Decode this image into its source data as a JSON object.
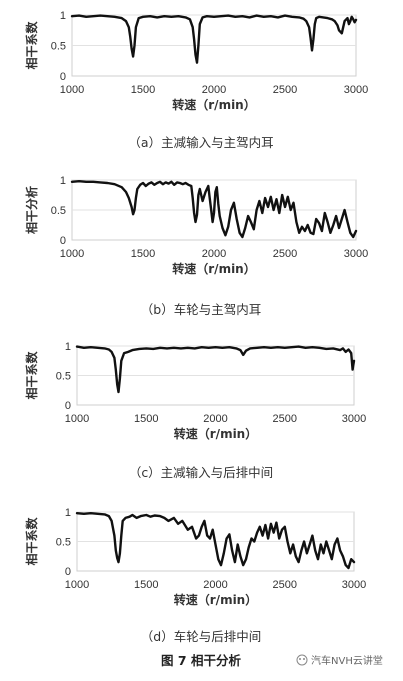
{
  "figure_caption": "图 7  相干分析",
  "watermark": "汽车NVH云讲堂",
  "chart_data": [
    {
      "type": "line",
      "caption": "（a）主减输入与主驾内耳",
      "xlabel": "转速（r/min）",
      "ylabel": "相干系数",
      "xlim": [
        1000,
        3000
      ],
      "ylim": [
        0,
        1
      ],
      "xticks": [
        "1000",
        "1500",
        "2000",
        "2500",
        "3000"
      ],
      "yticks": [
        "0",
        "0.5",
        "1"
      ],
      "grid": "horizontal",
      "series": [
        {
          "x": [
            1000,
            1050,
            1100,
            1150,
            1200,
            1250,
            1300,
            1350,
            1380,
            1400,
            1410,
            1420,
            1430,
            1440,
            1450,
            1470,
            1500,
            1550,
            1600,
            1650,
            1700,
            1750,
            1800,
            1830,
            1850,
            1860,
            1870,
            1880,
            1890,
            1900,
            1920,
            1950,
            2000,
            2050,
            2100,
            2150,
            2200,
            2250,
            2300,
            2350,
            2400,
            2450,
            2500,
            2550,
            2600,
            2630,
            2650,
            2670,
            2680,
            2690,
            2700,
            2710,
            2720,
            2740,
            2770,
            2800,
            2830,
            2850,
            2870,
            2880,
            2900,
            2910,
            2920,
            2940,
            2950,
            2960,
            2970,
            2980,
            2990,
            3000
          ],
          "y": [
            0.98,
            0.99,
            0.97,
            0.98,
            0.99,
            0.98,
            0.97,
            0.95,
            0.9,
            0.8,
            0.65,
            0.45,
            0.32,
            0.5,
            0.8,
            0.95,
            0.97,
            0.98,
            0.96,
            0.98,
            0.97,
            0.98,
            0.96,
            0.93,
            0.8,
            0.6,
            0.35,
            0.22,
            0.5,
            0.85,
            0.96,
            0.98,
            0.97,
            0.98,
            0.99,
            0.97,
            0.98,
            0.96,
            0.99,
            0.97,
            0.98,
            0.96,
            0.99,
            0.97,
            0.96,
            0.94,
            0.9,
            0.8,
            0.62,
            0.42,
            0.6,
            0.85,
            0.95,
            0.97,
            0.96,
            0.95,
            0.93,
            0.9,
            0.83,
            0.75,
            0.7,
            0.8,
            0.9,
            0.95,
            0.85,
            0.9,
            0.97,
            0.93,
            0.88,
            0.92
          ]
        }
      ]
    },
    {
      "type": "line",
      "caption": "（b）车轮与主驾内耳",
      "xlabel": "转速（r/min）",
      "ylabel": "相干分析",
      "xlim": [
        1000,
        3000
      ],
      "ylim": [
        0,
        1
      ],
      "xticks": [
        "1000",
        "1500",
        "2000",
        "2500",
        "3000"
      ],
      "yticks": [
        "0",
        "0.5",
        "1"
      ],
      "grid": "horizontal",
      "series": [
        {
          "x": [
            1000,
            1050,
            1100,
            1150,
            1200,
            1250,
            1300,
            1350,
            1380,
            1400,
            1420,
            1430,
            1440,
            1450,
            1460,
            1480,
            1500,
            1520,
            1540,
            1560,
            1580,
            1600,
            1620,
            1640,
            1660,
            1680,
            1700,
            1720,
            1740,
            1760,
            1780,
            1800,
            1820,
            1840,
            1850,
            1860,
            1870,
            1880,
            1890,
            1900,
            1920,
            1940,
            1960,
            1970,
            1980,
            1990,
            2000,
            2010,
            2020,
            2030,
            2040,
            2060,
            2080,
            2100,
            2120,
            2140,
            2160,
            2180,
            2200,
            2220,
            2240,
            2260,
            2280,
            2300,
            2320,
            2340,
            2360,
            2380,
            2400,
            2420,
            2440,
            2460,
            2480,
            2500,
            2520,
            2540,
            2560,
            2580,
            2600,
            2620,
            2640,
            2660,
            2680,
            2700,
            2720,
            2740,
            2760,
            2780,
            2800,
            2820,
            2840,
            2860,
            2880,
            2900,
            2920,
            2940,
            2960,
            2980,
            3000
          ],
          "y": [
            0.97,
            0.98,
            0.97,
            0.97,
            0.96,
            0.95,
            0.93,
            0.88,
            0.8,
            0.7,
            0.55,
            0.43,
            0.5,
            0.7,
            0.85,
            0.92,
            0.95,
            0.9,
            0.94,
            0.96,
            0.92,
            0.95,
            0.97,
            0.93,
            0.96,
            0.94,
            0.97,
            0.92,
            0.96,
            0.95,
            0.93,
            0.95,
            0.92,
            0.9,
            0.7,
            0.45,
            0.3,
            0.42,
            0.75,
            0.85,
            0.65,
            0.8,
            0.9,
            0.7,
            0.5,
            0.3,
            0.45,
            0.8,
            0.88,
            0.6,
            0.4,
            0.2,
            0.08,
            0.22,
            0.5,
            0.62,
            0.35,
            0.12,
            0.05,
            0.2,
            0.4,
            0.3,
            0.18,
            0.5,
            0.65,
            0.45,
            0.7,
            0.55,
            0.72,
            0.5,
            0.68,
            0.45,
            0.75,
            0.55,
            0.72,
            0.5,
            0.62,
            0.3,
            0.12,
            0.22,
            0.15,
            0.25,
            0.12,
            0.1,
            0.35,
            0.28,
            0.15,
            0.45,
            0.3,
            0.12,
            0.25,
            0.4,
            0.2,
            0.35,
            0.5,
            0.3,
            0.12,
            0.05,
            0.15
          ]
        }
      ]
    },
    {
      "type": "line",
      "caption": "（c）主减输入与后排中间",
      "xlabel": "转速（r/min）",
      "ylabel": "相干系数",
      "xlim": [
        1000,
        3000
      ],
      "ylim": [
        0,
        1
      ],
      "xticks": [
        "1000",
        "1500",
        "2000",
        "2500",
        "3000"
      ],
      "yticks": [
        "0",
        "0.5",
        "1"
      ],
      "grid": "horizontal",
      "series": [
        {
          "x": [
            1000,
            1050,
            1100,
            1150,
            1200,
            1230,
            1250,
            1270,
            1280,
            1290,
            1300,
            1310,
            1320,
            1340,
            1370,
            1400,
            1450,
            1500,
            1550,
            1600,
            1650,
            1700,
            1750,
            1800,
            1850,
            1900,
            1950,
            2000,
            2050,
            2100,
            2150,
            2180,
            2200,
            2220,
            2250,
            2300,
            2350,
            2400,
            2450,
            2500,
            2550,
            2600,
            2650,
            2700,
            2750,
            2800,
            2850,
            2900,
            2920,
            2940,
            2960,
            2980,
            2990,
            3000
          ],
          "y": [
            0.99,
            0.97,
            0.98,
            0.97,
            0.96,
            0.94,
            0.9,
            0.8,
            0.6,
            0.35,
            0.22,
            0.45,
            0.75,
            0.88,
            0.9,
            0.93,
            0.95,
            0.96,
            0.95,
            0.97,
            0.96,
            0.97,
            0.96,
            0.97,
            0.96,
            0.98,
            0.97,
            0.98,
            0.97,
            0.98,
            0.96,
            0.93,
            0.85,
            0.92,
            0.96,
            0.97,
            0.98,
            0.97,
            0.98,
            0.97,
            0.98,
            0.99,
            0.97,
            0.98,
            0.97,
            0.95,
            0.96,
            0.93,
            0.96,
            0.9,
            0.94,
            0.88,
            0.6,
            0.75
          ]
        }
      ]
    },
    {
      "type": "line",
      "caption": "（d）车轮与后排中间",
      "xlabel": "转速（r/min）",
      "ylabel": "相干系数",
      "xlim": [
        1000,
        3000
      ],
      "ylim": [
        0,
        1
      ],
      "xticks": [
        "1000",
        "1500",
        "2000",
        "2500",
        "3000"
      ],
      "yticks": [
        "0",
        "0.5",
        "1"
      ],
      "grid": "horizontal",
      "series": [
        {
          "x": [
            1000,
            1050,
            1100,
            1150,
            1200,
            1230,
            1250,
            1270,
            1280,
            1290,
            1300,
            1310,
            1320,
            1330,
            1350,
            1380,
            1400,
            1430,
            1460,
            1500,
            1530,
            1560,
            1600,
            1630,
            1660,
            1700,
            1730,
            1760,
            1800,
            1830,
            1860,
            1880,
            1900,
            1920,
            1940,
            1960,
            1980,
            2000,
            2020,
            2040,
            2060,
            2080,
            2100,
            2120,
            2140,
            2160,
            2180,
            2200,
            2220,
            2240,
            2260,
            2280,
            2300,
            2320,
            2340,
            2360,
            2380,
            2400,
            2420,
            2440,
            2460,
            2480,
            2500,
            2520,
            2540,
            2560,
            2580,
            2600,
            2620,
            2640,
            2660,
            2680,
            2700,
            2720,
            2740,
            2760,
            2780,
            2800,
            2820,
            2840,
            2860,
            2880,
            2900,
            2920,
            2940,
            2960,
            2980,
            3000
          ],
          "y": [
            0.98,
            0.97,
            0.98,
            0.97,
            0.96,
            0.93,
            0.85,
            0.6,
            0.35,
            0.22,
            0.15,
            0.3,
            0.6,
            0.85,
            0.9,
            0.92,
            0.95,
            0.9,
            0.93,
            0.95,
            0.92,
            0.94,
            0.93,
            0.9,
            0.85,
            0.9,
            0.8,
            0.85,
            0.7,
            0.75,
            0.55,
            0.6,
            0.75,
            0.85,
            0.6,
            0.55,
            0.7,
            0.45,
            0.2,
            0.1,
            0.3,
            0.55,
            0.62,
            0.35,
            0.15,
            0.45,
            0.25,
            0.1,
            0.2,
            0.4,
            0.55,
            0.5,
            0.65,
            0.75,
            0.6,
            0.78,
            0.55,
            0.8,
            0.65,
            0.82,
            0.55,
            0.7,
            0.75,
            0.5,
            0.3,
            0.45,
            0.25,
            0.15,
            0.35,
            0.5,
            0.3,
            0.45,
            0.6,
            0.35,
            0.2,
            0.45,
            0.3,
            0.5,
            0.35,
            0.2,
            0.45,
            0.55,
            0.35,
            0.25,
            0.1,
            0.05,
            0.2,
            0.15
          ]
        }
      ]
    }
  ]
}
